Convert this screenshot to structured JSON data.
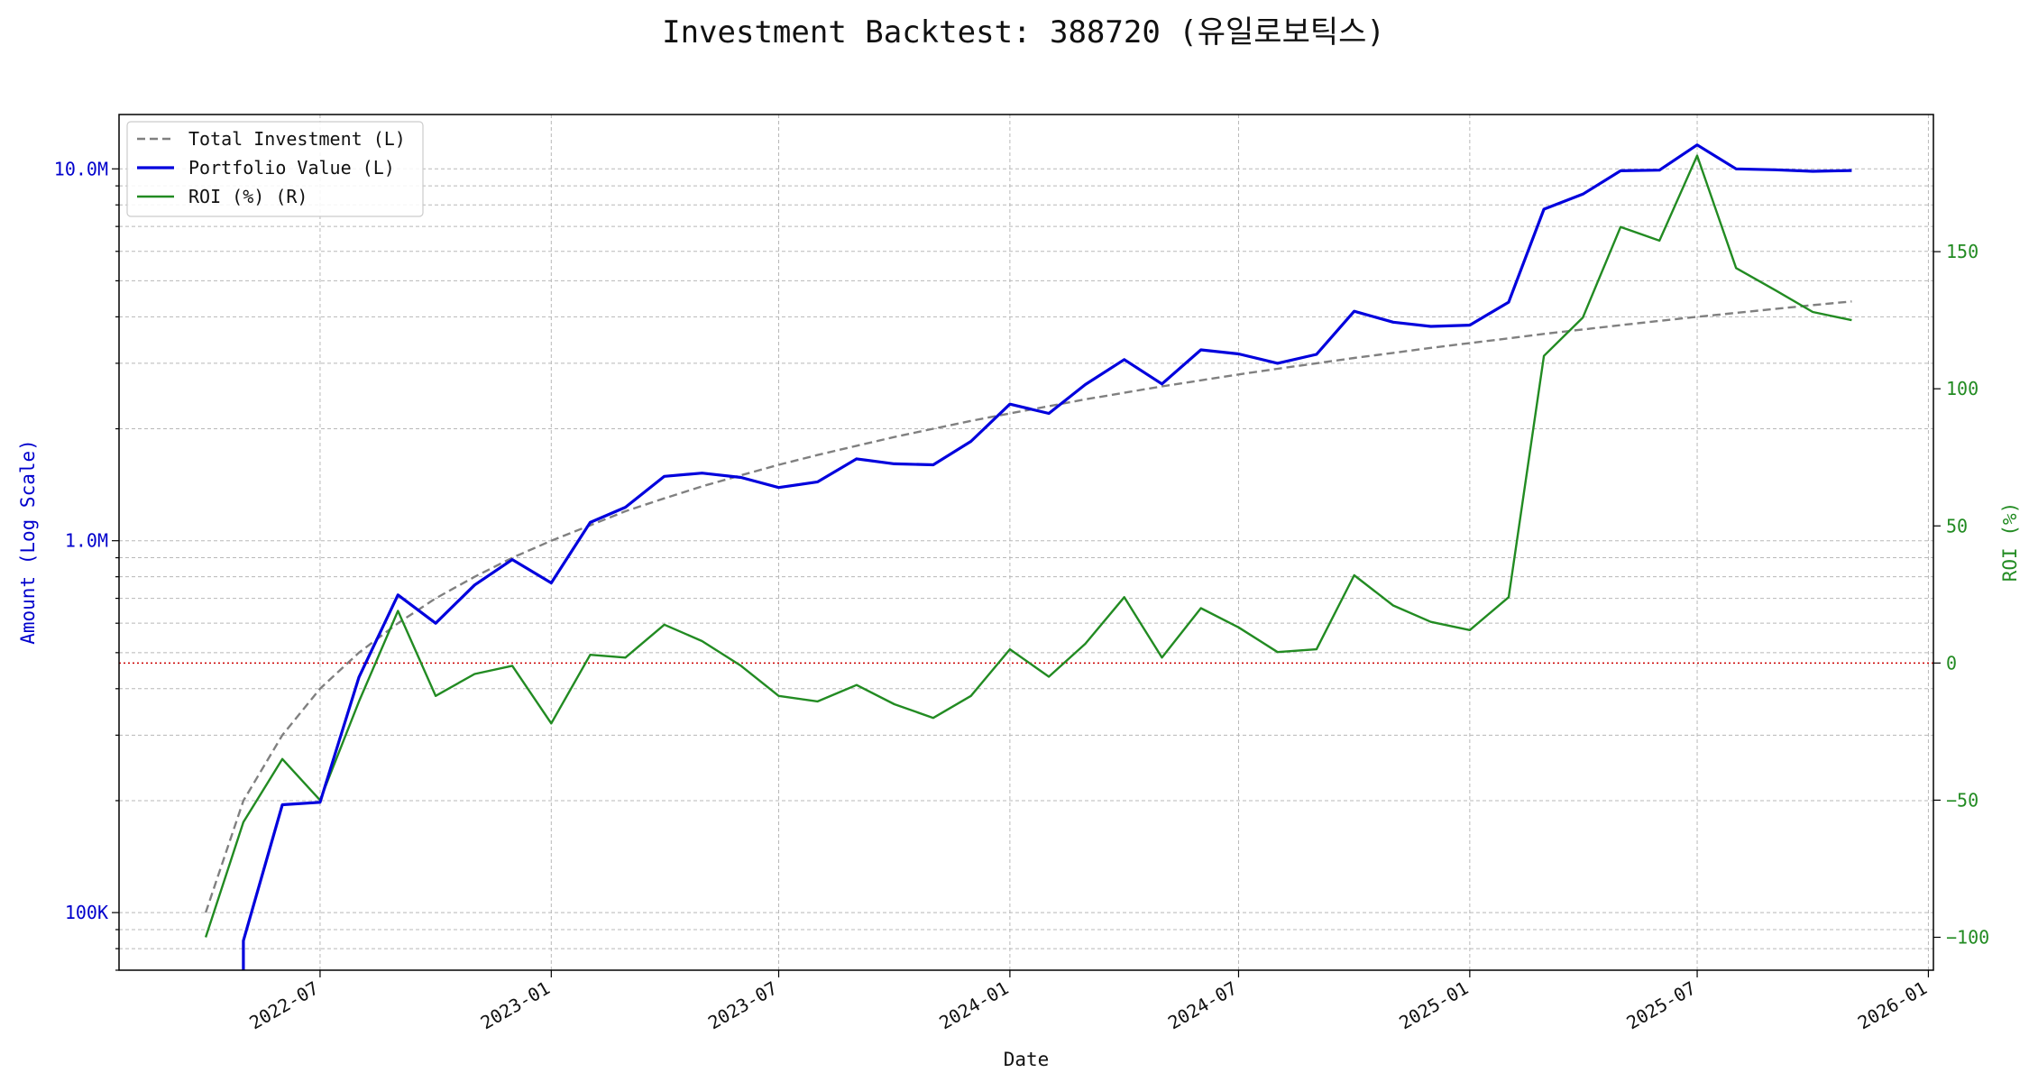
{
  "chart_data": {
    "type": "line",
    "title": "Investment Backtest: 388720 (유일로보틱스)",
    "xlabel": "Date",
    "ylabel_left": "Amount (Log Scale)",
    "ylabel_right": "ROI (%)",
    "left_axis": {
      "scale": "log",
      "ylim": [
        70000,
        14000000
      ],
      "ticks": [
        {
          "value": 100000,
          "label": "100K"
        },
        {
          "value": 1000000,
          "label": "1.0M"
        },
        {
          "value": 10000000,
          "label": "10.0M"
        }
      ]
    },
    "right_axis": {
      "scale": "linear",
      "ylim": [
        -112,
        200
      ],
      "ticks": [
        {
          "value": -100,
          "label": "−100"
        },
        {
          "value": -50,
          "label": "−50"
        },
        {
          "value": 0,
          "label": "0"
        },
        {
          "value": 50,
          "label": "50"
        },
        {
          "value": 100,
          "label": "100"
        },
        {
          "value": 150,
          "label": "150"
        }
      ]
    },
    "x_axis": {
      "range": [
        "2022-01-22",
        "2026-01-05"
      ],
      "ticks": [
        {
          "value": "2022-07-01",
          "label": "2022-07"
        },
        {
          "value": "2023-01-01",
          "label": "2023-01"
        },
        {
          "value": "2023-07-01",
          "label": "2023-07"
        },
        {
          "value": "2024-01-01",
          "label": "2024-01"
        },
        {
          "value": "2024-07-01",
          "label": "2024-07"
        },
        {
          "value": "2025-01-01",
          "label": "2025-01"
        },
        {
          "value": "2025-07-01",
          "label": "2025-07"
        },
        {
          "value": "2026-01-01",
          "label": "2026-01"
        }
      ]
    },
    "grid": true,
    "legend_position": "top-left",
    "zero_line": {
      "value": 0,
      "axis": "right",
      "color": "#cc0000"
    },
    "x": [
      "2022-04-01",
      "2022-05-01",
      "2022-06-01",
      "2022-07-01",
      "2022-08-01",
      "2022-09-01",
      "2022-10-01",
      "2022-11-01",
      "2022-12-01",
      "2023-01-01",
      "2023-02-01",
      "2023-03-01",
      "2023-04-01",
      "2023-05-01",
      "2023-06-01",
      "2023-07-01",
      "2023-08-01",
      "2023-09-01",
      "2023-10-01",
      "2023-11-01",
      "2023-12-01",
      "2024-01-01",
      "2024-02-01",
      "2024-03-01",
      "2024-04-01",
      "2024-05-01",
      "2024-06-01",
      "2024-07-01",
      "2024-08-01",
      "2024-09-01",
      "2024-10-01",
      "2024-11-01",
      "2024-12-01",
      "2025-01-01",
      "2025-02-01",
      "2025-03-01",
      "2025-04-01",
      "2025-05-01",
      "2025-06-01",
      "2025-07-01",
      "2025-08-01",
      "2025-09-01",
      "2025-10-01",
      "2025-11-01"
    ],
    "series": [
      {
        "name": "Total Investment (L)",
        "axis": "left",
        "color": "#808080",
        "style": "dashed",
        "values": [
          100000,
          200000,
          300000,
          400000,
          500000,
          600000,
          700000,
          800000,
          900000,
          1000000,
          1100000,
          1200000,
          1300000,
          1400000,
          1500000,
          1600000,
          1700000,
          1800000,
          1900000,
          2000000,
          2100000,
          2200000,
          2300000,
          2400000,
          2500000,
          2600000,
          2700000,
          2800000,
          2900000,
          3000000,
          3100000,
          3200000,
          3300000,
          3400000,
          3500000,
          3600000,
          3700000,
          3800000,
          3900000,
          4000000,
          4100000,
          4200000,
          4300000,
          4400000
        ]
      },
      {
        "name": "Portfolio Value (L)",
        "axis": "left",
        "color": "#0000dd",
        "style": "solid",
        "values": [
          null,
          84000,
          195000,
          198000,
          430000,
          715000,
          600000,
          760000,
          890000,
          770000,
          1120000,
          1230000,
          1490000,
          1520000,
          1480000,
          1390000,
          1440000,
          1660000,
          1610000,
          1600000,
          1850000,
          2330000,
          2200000,
          2630000,
          3070000,
          2640000,
          3260000,
          3180000,
          3000000,
          3170000,
          4140000,
          3870000,
          3770000,
          3800000,
          4380000,
          7790000,
          8550000,
          9880000,
          9920000,
          11600000,
          10000000,
          9940000,
          9850000,
          9900000
        ]
      },
      {
        "name": "ROI (%) (R)",
        "axis": "right",
        "color": "#228b22",
        "style": "solid",
        "values": [
          -100,
          -58,
          -35,
          -50,
          -14,
          19,
          -12,
          -4,
          -1,
          -22,
          3,
          2,
          14,
          8,
          -1,
          -12,
          -14,
          -8,
          -15,
          -20,
          -12,
          5,
          -5,
          7,
          24,
          2,
          20,
          13,
          4,
          5,
          32,
          21,
          15,
          12,
          24,
          112,
          126,
          159,
          154,
          185,
          144,
          136,
          128,
          125
        ]
      }
    ]
  }
}
